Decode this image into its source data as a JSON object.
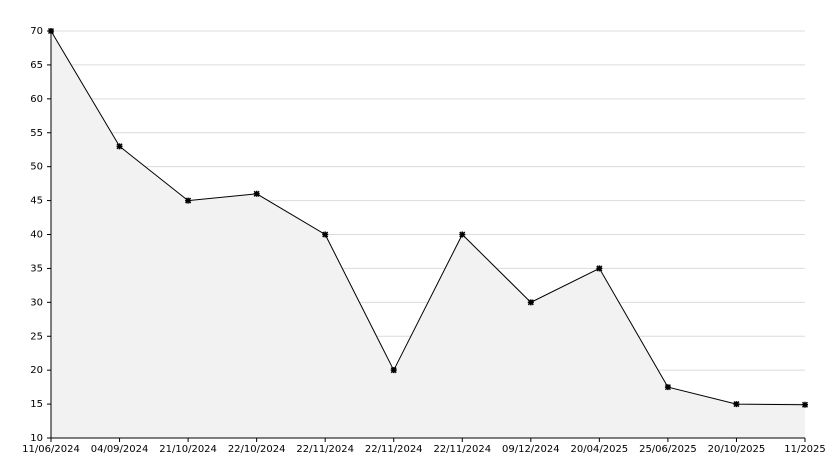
{
  "chart_data": {
    "type": "area",
    "categories": [
      "11/06/2024",
      "04/09/2024",
      "21/10/2024",
      "22/10/2024",
      "22/11/2024",
      "22/11/2024",
      "22/11/2024",
      "09/12/2024",
      "20/04/2025",
      "25/06/2025",
      "20/10/2025",
      "11/2025"
    ],
    "values": [
      70,
      53,
      45,
      46,
      40,
      20,
      40,
      30,
      35,
      17.5,
      15,
      14.9
    ],
    "color": "#000000",
    "fill": "#f2f2f2",
    "ylim": [
      10,
      70
    ],
    "yticks": [
      10,
      15,
      20,
      25,
      30,
      35,
      40,
      45,
      50,
      55,
      60,
      65,
      70
    ],
    "grid": true
  }
}
